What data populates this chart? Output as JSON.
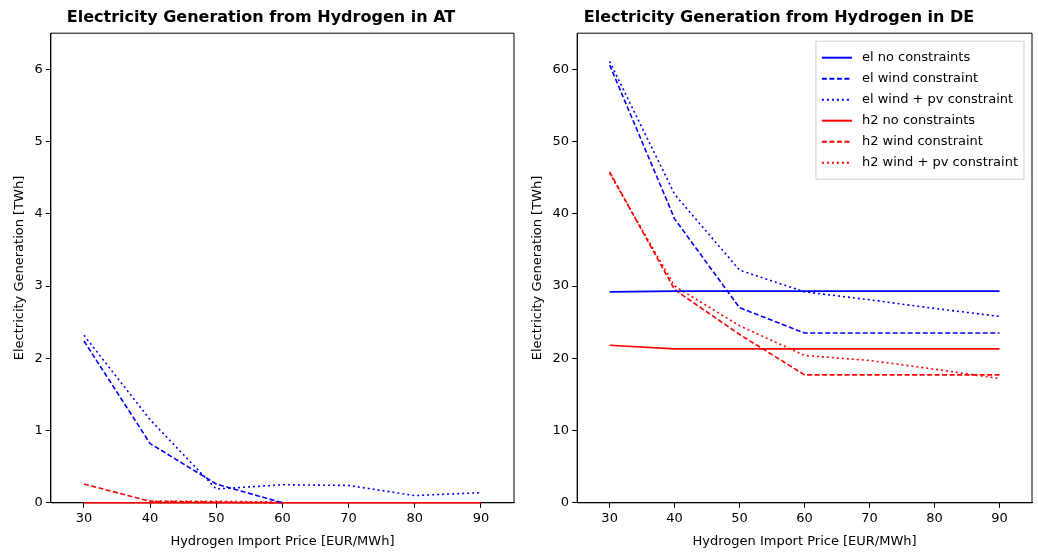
{
  "chart_data": [
    {
      "type": "line",
      "title": "Electricity Generation from Hydrogen in AT",
      "xlabel": "Hydrogen Import Price [EUR/MWh]",
      "ylabel": "Electricity Generation [TWh]",
      "x": [
        30,
        40,
        50,
        60,
        70,
        80,
        90
      ],
      "xlim": [
        25,
        95
      ],
      "xticks": [
        30,
        40,
        50,
        60,
        70,
        80,
        90
      ],
      "ylim": [
        0,
        6.5
      ],
      "yticks": [
        0,
        1,
        2,
        3,
        4,
        5,
        6
      ],
      "grid": false,
      "legend": false,
      "marker": "none",
      "series": [
        {
          "color": "#0000ff",
          "line_style": "dashed",
          "values": [
            2.24,
            0.82,
            0.26,
            0,
            null,
            null,
            null
          ]
        },
        {
          "color": "#0000ff",
          "line_style": "dotted",
          "values": [
            2.32,
            1.15,
            0.19,
            0.25,
            0.24,
            0.1,
            0.14
          ]
        },
        {
          "color": "#ff0000",
          "line_style": "solid",
          "values": [
            0,
            0,
            0,
            0,
            0,
            0,
            0
          ]
        },
        {
          "color": "#ff0000",
          "line_style": "dashed",
          "values": [
            0.26,
            0.02,
            0.01,
            0,
            null,
            null,
            null
          ]
        },
        {
          "color": "#ff0000",
          "line_style": "dotted",
          "values": [
            null,
            0.02,
            0.02,
            0.01,
            null,
            null,
            null
          ]
        }
      ]
    },
    {
      "type": "line",
      "title": "Electricity Generation from Hydrogen in DE",
      "xlabel": "Hydrogen Import Price [EUR/MWh]",
      "ylabel": "Electricity Generation [TWh]",
      "x": [
        30,
        40,
        50,
        60,
        70,
        80,
        90
      ],
      "xlim": [
        25,
        95
      ],
      "xticks": [
        30,
        40,
        50,
        60,
        70,
        80,
        90
      ],
      "ylim": [
        0,
        65
      ],
      "yticks": [
        0,
        10,
        20,
        30,
        40,
        50,
        60
      ],
      "grid": false,
      "legend": "top right",
      "marker": "none",
      "series": [
        {
          "name": "el no constraints",
          "color": "#0000ff",
          "line_style": "solid",
          "values": [
            29.2,
            29.3,
            29.3,
            29.3,
            29.3,
            29.3,
            29.3
          ]
        },
        {
          "name": "el wind constraint",
          "color": "#0000ff",
          "line_style": "dashed",
          "values": [
            60.6,
            39.3,
            27,
            23.5,
            23.5,
            23.5,
            23.5
          ]
        },
        {
          "name": "el wind + pv constraint",
          "color": "#0000ff",
          "line_style": "dotted",
          "values": [
            61.1,
            42.7,
            32.2,
            29.2,
            28.1,
            26.9,
            25.8
          ]
        },
        {
          "name": "h2 no constraints",
          "color": "#ff0000",
          "line_style": "solid",
          "values": [
            21.8,
            21.3,
            21.3,
            21.3,
            21.3,
            21.3,
            21.3
          ]
        },
        {
          "name": "h2 wind constraint",
          "color": "#ff0000",
          "line_style": "dashed",
          "values": [
            45.8,
            29.5,
            23.3,
            17.7,
            17.7,
            17.7,
            17.7
          ]
        },
        {
          "name": "h2 wind + pv constraint",
          "color": "#ff0000",
          "line_style": "dotted",
          "values": [
            45.6,
            30,
            24.5,
            20.4,
            19.7,
            18.5,
            17.2
          ]
        }
      ]
    }
  ]
}
